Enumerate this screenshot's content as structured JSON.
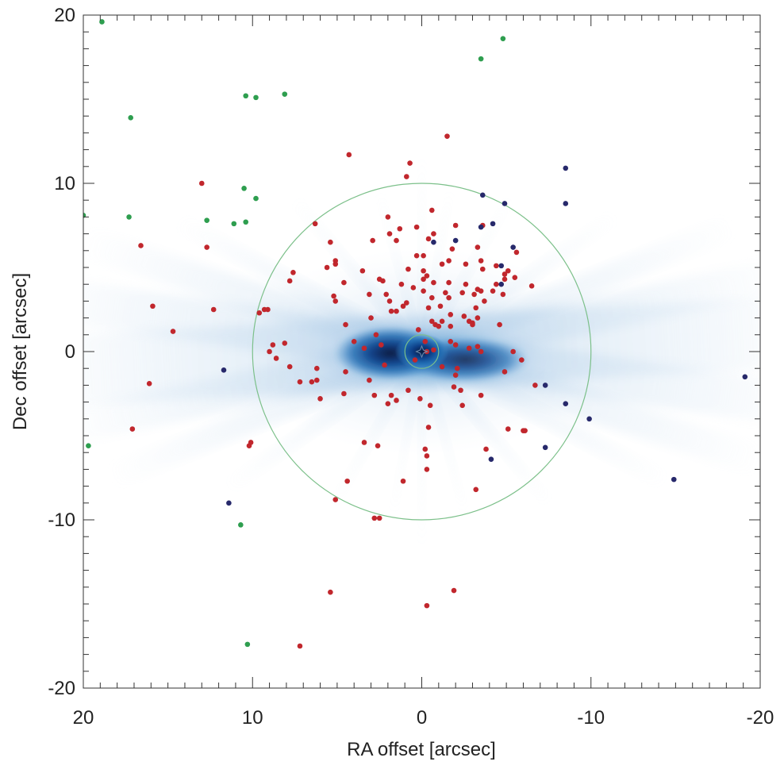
{
  "chart_data": {
    "type": "scatter",
    "title": "",
    "xlabel": "RA offset [arcsec]",
    "ylabel": "Dec offset [arcsec]",
    "xlim": [
      20,
      -20
    ],
    "ylim": [
      -20,
      20
    ],
    "x_ticks": [
      20,
      10,
      0,
      -10,
      -20
    ],
    "x_tick_labels": [
      "20",
      "10",
      "0",
      "-10",
      "-20"
    ],
    "y_ticks": [
      20,
      10,
      0,
      -10,
      -20
    ],
    "y_tick_labels": [
      "20",
      "10",
      "0",
      "-10",
      "-20"
    ],
    "grid": false,
    "legend": "none",
    "background": "diffuse blue intensity map centered on origin with radial streaks",
    "circles": [
      {
        "center": [
          0,
          0
        ],
        "radius": 10,
        "color": "#7cc08a"
      },
      {
        "center": [
          0,
          0
        ],
        "radius": 1,
        "color": "#7cc08a"
      }
    ],
    "center_marker": {
      "x": 0,
      "y": 0,
      "color": "#6f8fb0"
    },
    "series": [
      {
        "color": "#c1272d",
        "points": [
          [
            -1.5,
            12.8
          ],
          [
            4.3,
            11.7
          ],
          [
            0.7,
            11.2
          ],
          [
            0.9,
            10.4
          ],
          [
            13.0,
            10.0
          ],
          [
            -0.6,
            8.4
          ],
          [
            -2.0,
            7.5
          ],
          [
            2.0,
            8.0
          ],
          [
            -3.6,
            7.5
          ],
          [
            6.3,
            7.6
          ],
          [
            1.3,
            7.3
          ],
          [
            0.3,
            7.4
          ],
          [
            -0.7,
            7.0
          ],
          [
            1.9,
            7.0
          ],
          [
            -0.4,
            6.7
          ],
          [
            2.9,
            6.6
          ],
          [
            1.5,
            6.6
          ],
          [
            16.6,
            6.3
          ],
          [
            12.7,
            6.2
          ],
          [
            5.4,
            6.5
          ],
          [
            -1.8,
            6.1
          ],
          [
            -3.3,
            6.2
          ],
          [
            5.1,
            5.4
          ],
          [
            0.3,
            5.7
          ],
          [
            -0.1,
            5.7
          ],
          [
            -1.6,
            5.4
          ],
          [
            -3.5,
            5.4
          ],
          [
            -1.2,
            5.2
          ],
          [
            -2.6,
            5.2
          ],
          [
            -4.4,
            5.1
          ],
          [
            5.1,
            5.2
          ],
          [
            -0.1,
            4.8
          ],
          [
            3.5,
            4.8
          ],
          [
            0.8,
            4.9
          ],
          [
            -3.6,
            4.9
          ],
          [
            -5.1,
            4.8
          ],
          [
            5.6,
            5.0
          ],
          [
            7.6,
            4.7
          ],
          [
            -4.9,
            4.6
          ],
          [
            -5.6,
            5.9
          ],
          [
            -0.3,
            4.5
          ],
          [
            7.8,
            4.2
          ],
          [
            -0.1,
            4.3
          ],
          [
            2.5,
            4.3
          ],
          [
            2.3,
            4.2
          ],
          [
            -0.7,
            4.1
          ],
          [
            -4.9,
            4.3
          ],
          [
            -5.5,
            4.4
          ],
          [
            -1.6,
            4.1
          ],
          [
            -4.4,
            4.0
          ],
          [
            4.6,
            4.1
          ],
          [
            -2.6,
            4.0
          ],
          [
            1.2,
            4.0
          ],
          [
            -3.3,
            3.7
          ],
          [
            -6.5,
            3.9
          ],
          [
            0.5,
            3.8
          ],
          [
            -0.1,
            3.6
          ],
          [
            -1.4,
            3.5
          ],
          [
            -2.4,
            3.5
          ],
          [
            -3.5,
            3.6
          ],
          [
            -4.2,
            3.6
          ],
          [
            -3.1,
            3.4
          ],
          [
            2.1,
            3.4
          ],
          [
            3.1,
            3.4
          ],
          [
            -0.6,
            3.2
          ],
          [
            -1.6,
            3.2
          ],
          [
            -3.7,
            3.0
          ],
          [
            1.9,
            3.0
          ],
          [
            5.1,
            3.0
          ],
          [
            -4.8,
            3.4
          ],
          [
            0.9,
            2.9
          ],
          [
            5.2,
            3.3
          ],
          [
            1.1,
            2.7
          ],
          [
            -0.4,
            2.6
          ],
          [
            -1.1,
            2.7
          ],
          [
            -3.2,
            2.6
          ],
          [
            15.9,
            2.7
          ],
          [
            12.3,
            2.5
          ],
          [
            9.1,
            2.5
          ],
          [
            9.3,
            2.5
          ],
          [
            -2.5,
            2.1
          ],
          [
            1.5,
            2.4
          ],
          [
            1.8,
            2.4
          ],
          [
            9.6,
            2.3
          ],
          [
            -1.7,
            2.2
          ],
          [
            3.0,
            2.0
          ],
          [
            -2.8,
            1.8
          ],
          [
            -3.3,
            2.0
          ],
          [
            -0.6,
            1.8
          ],
          [
            -1.2,
            1.8
          ],
          [
            -1.7,
            1.5
          ],
          [
            -3.0,
            1.7
          ],
          [
            14.7,
            1.2
          ],
          [
            -4.6,
            1.6
          ],
          [
            4.5,
            1.6
          ],
          [
            -3.0,
            1.6
          ],
          [
            -1.0,
            1.5
          ],
          [
            -0.8,
            1.6
          ],
          [
            0.2,
            1.3
          ],
          [
            2.7,
            1.0
          ],
          [
            -0.2,
            0.6
          ],
          [
            -2.0,
            0.4
          ],
          [
            -0.3,
            0.0
          ],
          [
            2.4,
            0.4
          ],
          [
            3.4,
            0.2
          ],
          [
            4.0,
            0.6
          ],
          [
            -1.7,
            0.6
          ],
          [
            -3.3,
            0.3
          ],
          [
            -0.7,
            0.1
          ],
          [
            -2.8,
            0.2
          ],
          [
            8.1,
            0.5
          ],
          [
            8.8,
            0.4
          ],
          [
            9.0,
            0.0
          ],
          [
            -3.5,
            0.0
          ],
          [
            -5.4,
            0.0
          ],
          [
            -5.9,
            -0.5
          ],
          [
            8.6,
            -0.4
          ],
          [
            0.4,
            -0.5
          ],
          [
            2.2,
            -0.8
          ],
          [
            6.2,
            -1.0
          ],
          [
            -1.2,
            -0.9
          ],
          [
            7.8,
            -0.9
          ],
          [
            -2.1,
            -1.0
          ],
          [
            -4.9,
            -1.2
          ],
          [
            -2.0,
            -1.4
          ],
          [
            4.5,
            -1.2
          ],
          [
            6.2,
            -1.7
          ],
          [
            6.5,
            -1.8
          ],
          [
            3.1,
            -1.7
          ],
          [
            -1.9,
            -2.1
          ],
          [
            7.2,
            -1.8
          ],
          [
            16.1,
            -1.9
          ],
          [
            -6.7,
            -2.0
          ],
          [
            -2.3,
            -2.3
          ],
          [
            0.8,
            -2.3
          ],
          [
            4.6,
            -2.5
          ],
          [
            2.8,
            -2.6
          ],
          [
            1.8,
            -2.6
          ],
          [
            -3.5,
            -2.6
          ],
          [
            0.1,
            -2.8
          ],
          [
            1.5,
            -2.9
          ],
          [
            2.0,
            -3.1
          ],
          [
            6.0,
            -2.8
          ],
          [
            -0.5,
            -3.2
          ],
          [
            -2.4,
            -3.2
          ],
          [
            17.1,
            -4.6
          ],
          [
            -0.4,
            -4.5
          ],
          [
            -5.1,
            -4.6
          ],
          [
            -6.1,
            -4.7
          ],
          [
            10.1,
            -5.4
          ],
          [
            3.4,
            -5.4
          ],
          [
            10.2,
            -5.6
          ],
          [
            2.6,
            -5.6
          ],
          [
            -0.2,
            -5.8
          ],
          [
            -3.8,
            -5.8
          ],
          [
            -0.3,
            -6.2
          ],
          [
            -0.3,
            -7.0
          ],
          [
            4.4,
            -7.7
          ],
          [
            1.1,
            -7.7
          ],
          [
            -3.2,
            -8.2
          ],
          [
            5.1,
            -8.8
          ],
          [
            2.8,
            -9.9
          ],
          [
            2.5,
            -9.9
          ],
          [
            5.4,
            -14.3
          ],
          [
            -1.9,
            -14.2
          ],
          [
            -0.3,
            -15.1
          ],
          [
            7.2,
            -17.5
          ],
          [
            -6.0,
            -4.7
          ]
        ]
      },
      {
        "color": "#27296b",
        "points": [
          [
            -8.5,
            10.9
          ],
          [
            -3.6,
            9.3
          ],
          [
            -4.9,
            8.8
          ],
          [
            -8.5,
            8.8
          ],
          [
            -4.2,
            7.6
          ],
          [
            -3.5,
            7.4
          ],
          [
            -2.0,
            6.6
          ],
          [
            -0.7,
            6.5
          ],
          [
            -5.4,
            6.2
          ],
          [
            -4.7,
            5.1
          ],
          [
            -4.7,
            4.0
          ],
          [
            11.7,
            -1.1
          ],
          [
            -7.3,
            -2.0
          ],
          [
            -19.1,
            -1.5
          ],
          [
            -8.5,
            -3.1
          ],
          [
            -9.9,
            -4.0
          ],
          [
            -4.1,
            -6.4
          ],
          [
            -7.3,
            -5.7
          ],
          [
            -14.9,
            -7.6
          ],
          [
            11.4,
            -9.0
          ]
        ]
      },
      {
        "color": "#2e9e4f",
        "points": [
          [
            18.9,
            19.6
          ],
          [
            -4.8,
            18.6
          ],
          [
            -3.5,
            17.4
          ],
          [
            8.1,
            15.3
          ],
          [
            10.4,
            15.2
          ],
          [
            9.8,
            15.1
          ],
          [
            17.2,
            13.9
          ],
          [
            10.5,
            9.7
          ],
          [
            9.8,
            9.1
          ],
          [
            20.0,
            8.1
          ],
          [
            17.3,
            8.0
          ],
          [
            12.7,
            7.8
          ],
          [
            11.1,
            7.6
          ],
          [
            10.4,
            7.7
          ],
          [
            19.7,
            -5.6
          ],
          [
            10.7,
            -10.3
          ],
          [
            10.3,
            -17.4
          ]
        ]
      }
    ]
  }
}
